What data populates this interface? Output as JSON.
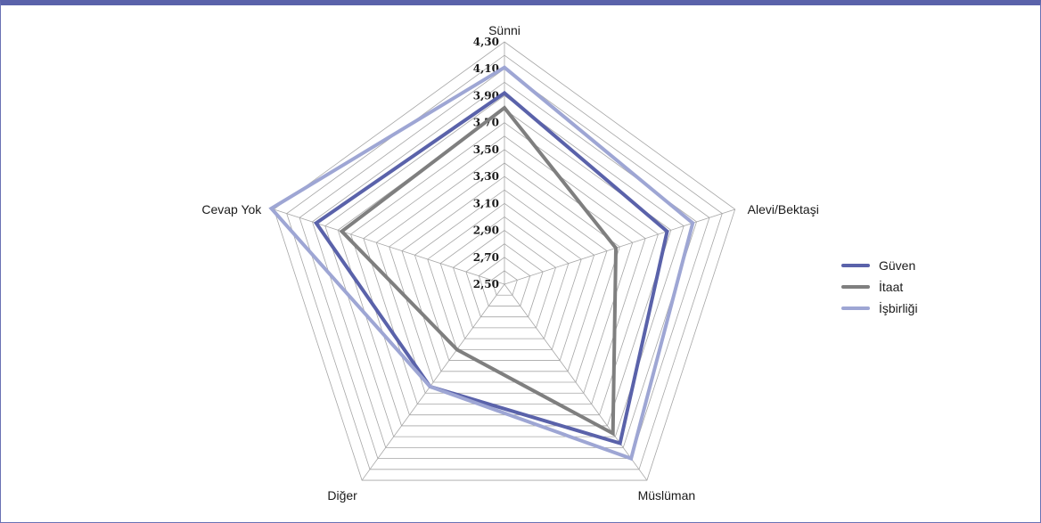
{
  "chart_data": {
    "type": "radar",
    "categories": [
      "Sünni",
      "Alevi/Bektaşi",
      "Müslüman",
      "Diğer",
      "Cevap Yok"
    ],
    "rlim": [
      2.5,
      4.3
    ],
    "ticks": [
      "2,50",
      "2,70",
      "2,90",
      "3,10",
      "3,30",
      "3,50",
      "3,70",
      "3,90",
      "4,10",
      "4,30"
    ],
    "tick_values": [
      2.5,
      2.7,
      2.9,
      3.1,
      3.3,
      3.5,
      3.7,
      3.9,
      4.1,
      4.3
    ],
    "grid_step": 0.1,
    "legend_position": "right",
    "series": [
      {
        "name": "Güven",
        "color": "#5a62aa",
        "values": [
          3.92,
          3.77,
          3.96,
          3.44,
          3.97
        ]
      },
      {
        "name": "İtaat",
        "color": "#7f7f7f",
        "values": [
          3.81,
          3.37,
          3.87,
          3.1,
          3.77
        ]
      },
      {
        "name": "İşbirliği",
        "color": "#9ea6d4",
        "values": [
          4.11,
          3.97,
          4.1,
          3.44,
          4.32
        ]
      }
    ]
  }
}
